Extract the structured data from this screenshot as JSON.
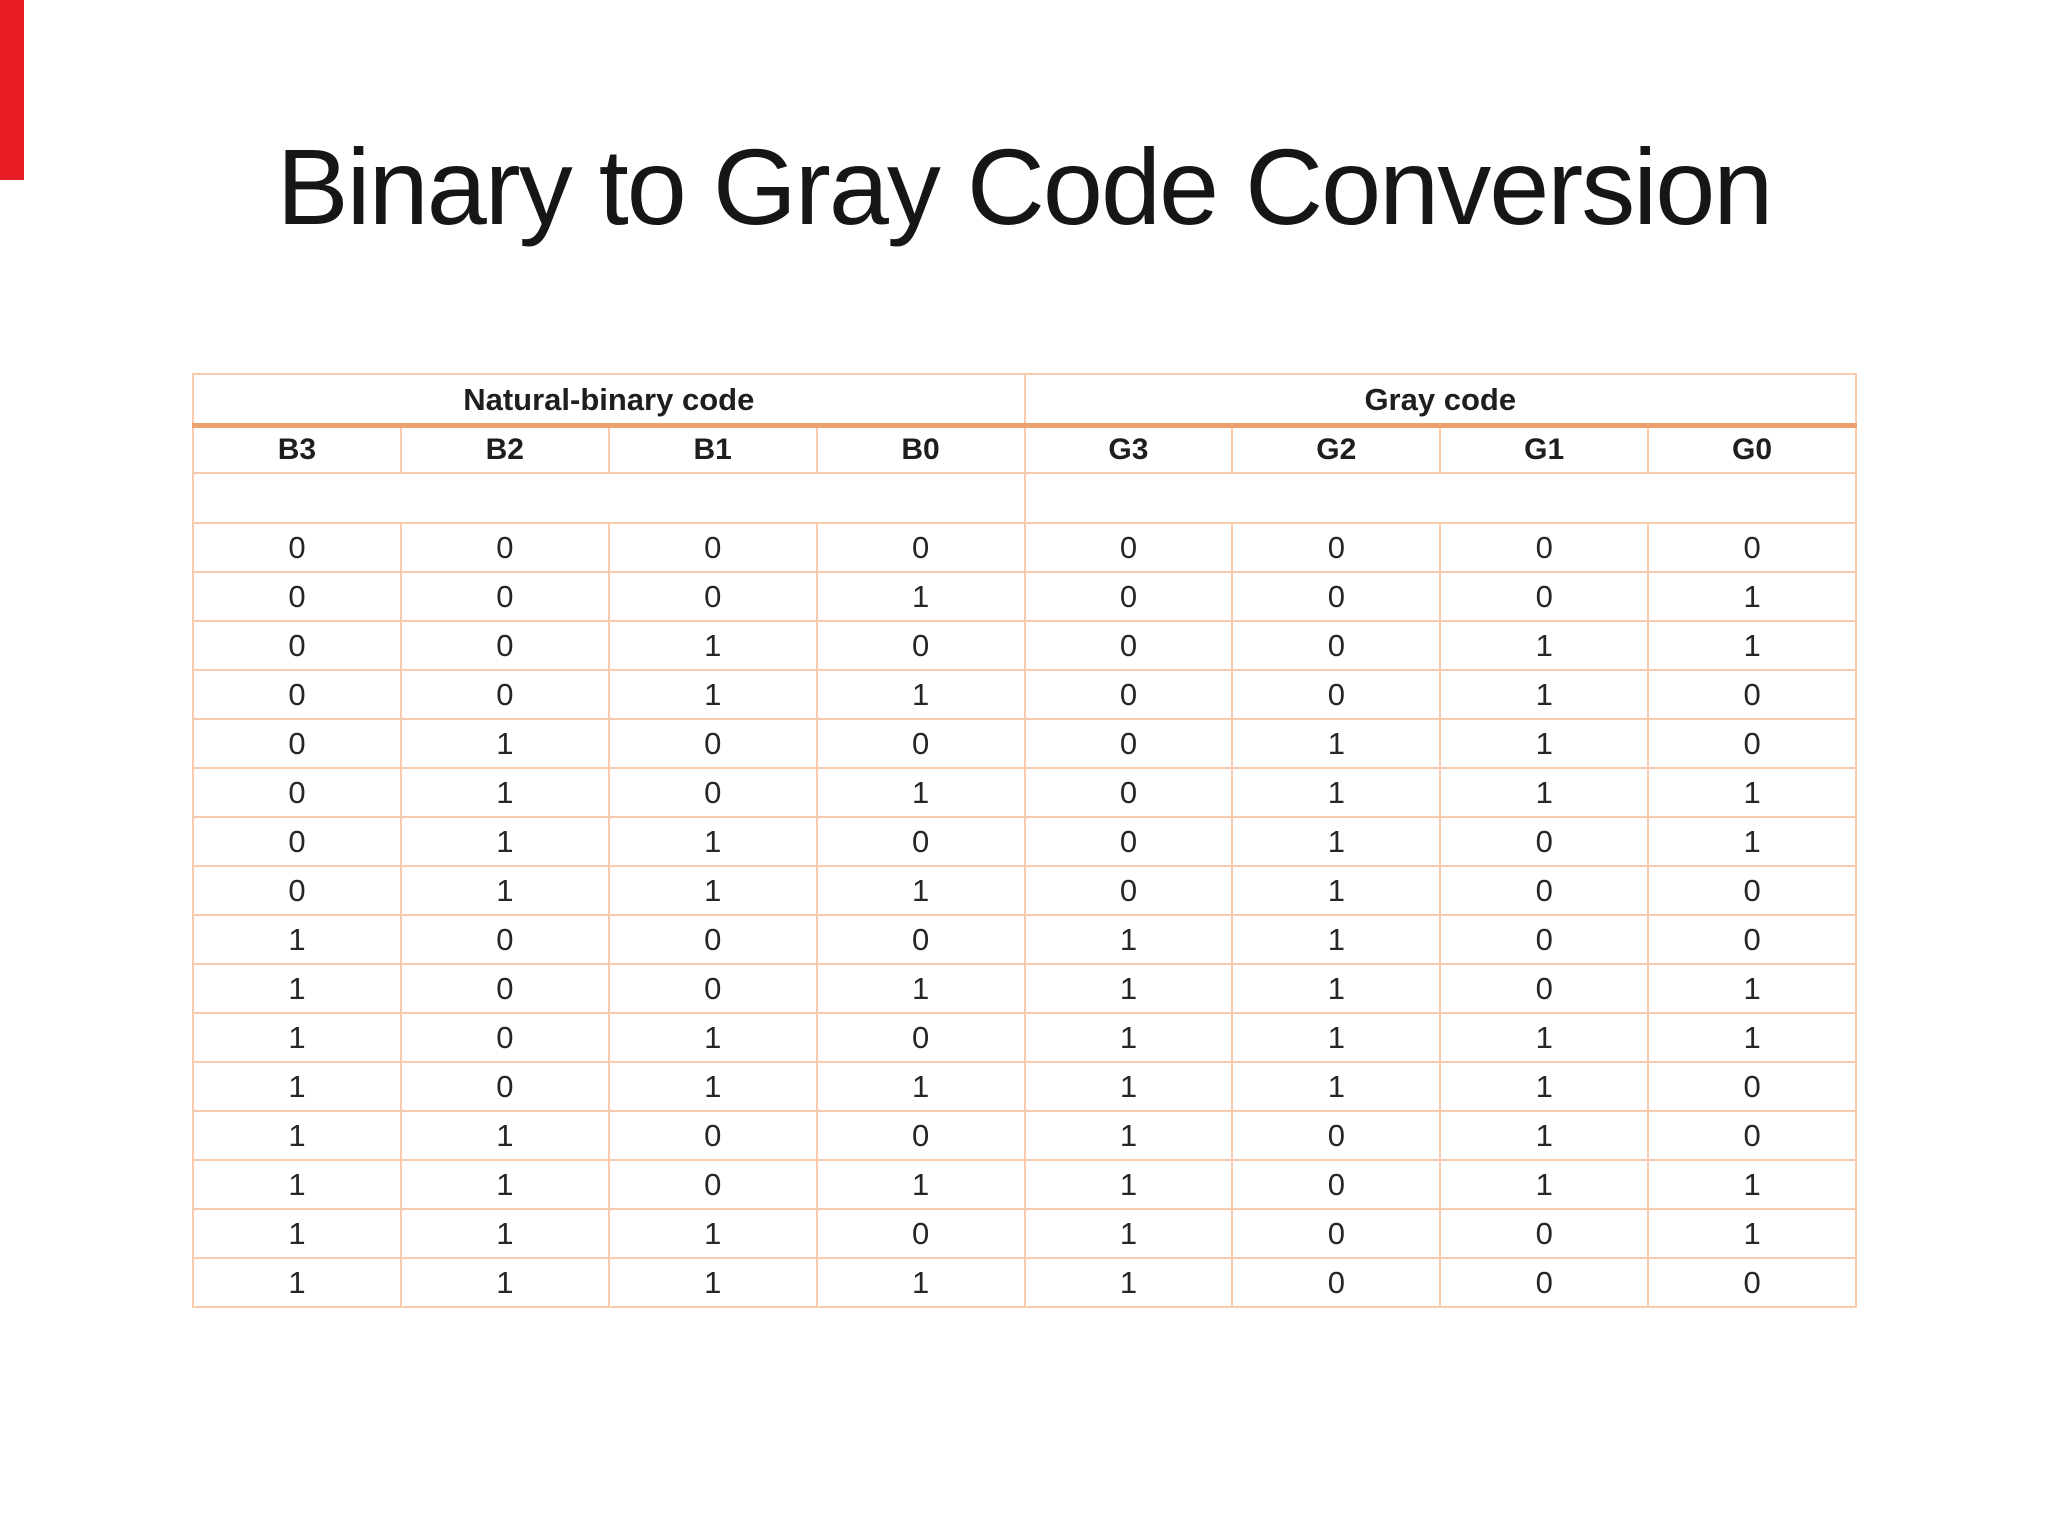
{
  "title": "Binary to Gray Code Conversion",
  "decoration": {
    "red_marker_color": "#e81c25"
  },
  "table": {
    "group_headers": [
      {
        "label": "Natural-binary code"
      },
      {
        "label": "Gray code"
      }
    ],
    "column_headers": [
      "B3",
      "B2",
      "B1",
      "B0",
      "G3",
      "G2",
      "G1",
      "G0"
    ],
    "rows": [
      [
        "0",
        "0",
        "0",
        "0",
        "0",
        "0",
        "0",
        "0"
      ],
      [
        "0",
        "0",
        "0",
        "1",
        "0",
        "0",
        "0",
        "1"
      ],
      [
        "0",
        "0",
        "1",
        "0",
        "0",
        "0",
        "1",
        "1"
      ],
      [
        "0",
        "0",
        "1",
        "1",
        "0",
        "0",
        "1",
        "0"
      ],
      [
        "0",
        "1",
        "0",
        "0",
        "0",
        "1",
        "1",
        "0"
      ],
      [
        "0",
        "1",
        "0",
        "1",
        "0",
        "1",
        "1",
        "1"
      ],
      [
        "0",
        "1",
        "1",
        "0",
        "0",
        "1",
        "0",
        "1"
      ],
      [
        "0",
        "1",
        "1",
        "1",
        "0",
        "1",
        "0",
        "0"
      ],
      [
        "1",
        "0",
        "0",
        "0",
        "1",
        "1",
        "0",
        "0"
      ],
      [
        "1",
        "0",
        "0",
        "1",
        "1",
        "1",
        "0",
        "1"
      ],
      [
        "1",
        "0",
        "1",
        "0",
        "1",
        "1",
        "1",
        "1"
      ],
      [
        "1",
        "0",
        "1",
        "1",
        "1",
        "1",
        "1",
        "0"
      ],
      [
        "1",
        "1",
        "0",
        "0",
        "1",
        "0",
        "1",
        "0"
      ],
      [
        "1",
        "1",
        "0",
        "1",
        "1",
        "0",
        "1",
        "1"
      ],
      [
        "1",
        "1",
        "1",
        "0",
        "1",
        "0",
        "0",
        "1"
      ],
      [
        "1",
        "1",
        "1",
        "1",
        "1",
        "0",
        "0",
        "0"
      ]
    ],
    "colors": {
      "thin_border": "#f7cbac",
      "thick_rule": "#eba06d",
      "text": "#262626"
    }
  }
}
